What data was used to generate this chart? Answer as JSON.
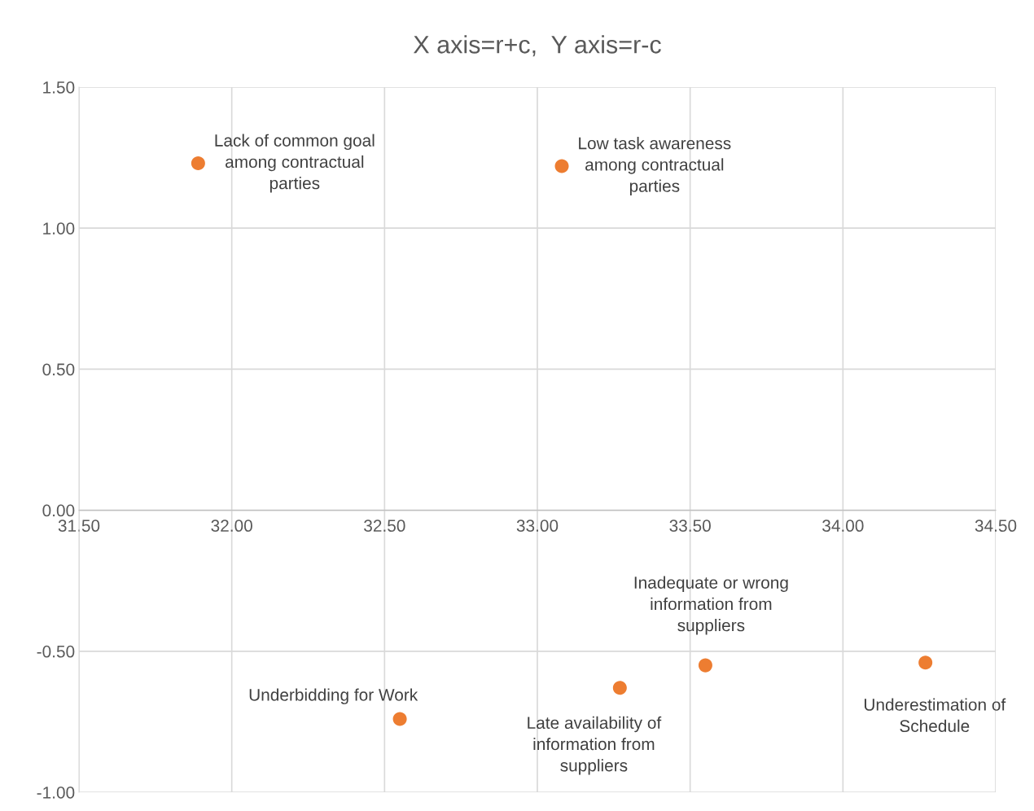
{
  "chart_data": {
    "type": "scatter",
    "title": "X axis=r+c,  Y axis=r-c",
    "series": [
      {
        "color": "#ed7d31",
        "x": [
          31.89,
          33.08,
          32.55,
          33.27,
          33.55,
          34.27
        ],
        "values": [
          1.23,
          1.22,
          -0.74,
          -0.63,
          -0.55,
          -0.54
        ]
      }
    ],
    "marker": "circle",
    "grid": true,
    "xlim": [
      31.5,
      34.5
    ],
    "ylim": [
      -1.0,
      1.5
    ],
    "xticks": [
      {
        "value": 31.5,
        "label": "31.50"
      },
      {
        "value": 32.0,
        "label": "32.00"
      },
      {
        "value": 32.5,
        "label": "32.50"
      },
      {
        "value": 33.0,
        "label": "33.00"
      },
      {
        "value": 33.5,
        "label": "33.50"
      },
      {
        "value": 34.0,
        "label": "34.00"
      },
      {
        "value": 34.5,
        "label": "34.50"
      }
    ],
    "yticks": [
      {
        "value": -1.0,
        "label": "-1.00"
      },
      {
        "value": -0.5,
        "label": "-0.50"
      },
      {
        "value": 0.0,
        "label": "0.00"
      },
      {
        "value": 0.5,
        "label": "0.50"
      },
      {
        "value": 1.0,
        "label": "1.00"
      },
      {
        "value": 1.5,
        "label": "1.50"
      }
    ],
    "annotations": [
      {
        "text": "Lack of common goal\namong contractual\nparties",
        "x": 31.89,
        "y": 1.23
      },
      {
        "text": "Low task awareness\namong contractual\nparties",
        "x": 33.08,
        "y": 1.22
      },
      {
        "text": "Underbidding for Work",
        "x": 32.55,
        "y": -0.74
      },
      {
        "text": "Late availability of\ninformation from\nsuppliers",
        "x": 33.27,
        "y": -0.63
      },
      {
        "text": "Inadequate or wrong\ninformation from\nsuppliers",
        "x": 33.55,
        "y": -0.55
      },
      {
        "text": "Underestimation of\nSchedule",
        "x": 34.27,
        "y": -0.54
      }
    ]
  }
}
